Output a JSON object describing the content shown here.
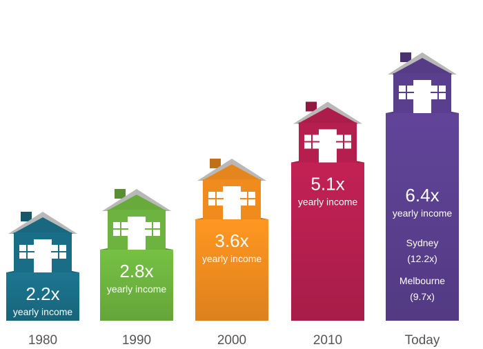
{
  "chart_data": {
    "type": "bar",
    "categories": [
      "1980",
      "1990",
      "2000",
      "2010",
      "Today"
    ],
    "values": [
      2.2,
      2.8,
      3.6,
      5.1,
      6.4
    ],
    "value_labels": [
      "2.2x",
      "2.8x",
      "3.6x",
      "5.1x",
      "6.4x"
    ],
    "value_caption": "yearly income",
    "colors": [
      "#1a6d86",
      "#6db33f",
      "#f08c1e",
      "#b51f4f",
      "#5a3f8e"
    ],
    "extra": {
      "city1_name": "Sydney",
      "city1_value": "(12.2x)",
      "city2_name": "Melbourne",
      "city2_value": "(9.7x)"
    }
  }
}
